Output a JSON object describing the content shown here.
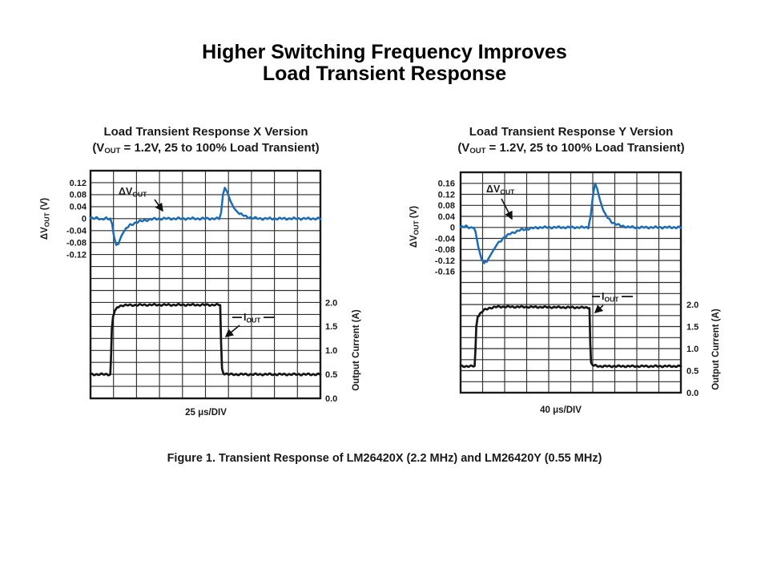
{
  "slide": {
    "title_line1": "Higher Switching Frequency Improves",
    "title_line2": "Load Transient Response",
    "caption": "Figure 1. Transient Response of LM26420X (2.2 MHz) and LM26420Y (0.55 MHz)",
    "background_color": "#ffffff",
    "text_color": "#1a1a1a"
  },
  "chart_data": [
    {
      "type": "line",
      "title": "Load Transient Response X Version",
      "subtitle_pre": "(V",
      "subtitle_sub": "OUT",
      "subtitle_post": " = 1.2V, 25 to 100% Load Transient)",
      "x_axis": {
        "label": "25 μs/DIV",
        "us_per_div": 25,
        "divisions": 10
      },
      "left_axis": {
        "label_main": "ΔV",
        "label_sub": "OUT",
        "label_unit": "(V)",
        "volts_per_div": 0.04,
        "ticks": [
          "0.12",
          "0.08",
          "0.04",
          "0",
          "-0.04",
          "-0.08",
          "-0.12"
        ]
      },
      "right_axis": {
        "label": "Output Current (A)",
        "ticks": [
          "2.0",
          "1.5",
          "1.0",
          "0.5",
          "0.0"
        ]
      },
      "annotations": [
        {
          "main": "ΔV",
          "sub": "OUT"
        },
        {
          "main": "I",
          "sub": "OUT"
        }
      ],
      "series": [
        {
          "name": "vout",
          "label": "Output Voltage Deviation",
          "units": "V",
          "color": "#1c6db6",
          "points": [
            [
              0,
              0
            ],
            [
              7,
              0.004
            ],
            [
              12,
              -0.005
            ],
            [
              17,
              0.002
            ],
            [
              21.5,
              0
            ],
            [
              23.5,
              -0.018
            ],
            [
              25.5,
              -0.06
            ],
            [
              28,
              -0.088
            ],
            [
              30.5,
              -0.082
            ],
            [
              34,
              -0.055
            ],
            [
              38,
              -0.035
            ],
            [
              43,
              -0.022
            ],
            [
              50,
              -0.012
            ],
            [
              60,
              -0.005
            ],
            [
              70,
              -0.001
            ],
            [
              80,
              0
            ],
            [
              140,
              0
            ],
            [
              142,
              0.02
            ],
            [
              144,
              0.08
            ],
            [
              146,
              0.103
            ],
            [
              148.5,
              0.09
            ],
            [
              152,
              0.06
            ],
            [
              156,
              0.035
            ],
            [
              161,
              0.018
            ],
            [
              168,
              0.008
            ],
            [
              176,
              0.002
            ],
            [
              185,
              0
            ],
            [
              250,
              0
            ]
          ]
        },
        {
          "name": "iout",
          "label": "Output Current",
          "units": "A",
          "color": "#161616",
          "points": [
            [
              0,
              0.5
            ],
            [
              21.5,
              0.5
            ],
            [
              22.3,
              0.85
            ],
            [
              23.2,
              1.45
            ],
            [
              24.5,
              1.7
            ],
            [
              26.5,
              1.83
            ],
            [
              29,
              1.9
            ],
            [
              34,
              1.94
            ],
            [
              60,
              1.95
            ],
            [
              141,
              1.95
            ],
            [
              142,
              1.15
            ],
            [
              143,
              0.62
            ],
            [
              144.5,
              0.52
            ],
            [
              150,
              0.5
            ],
            [
              250,
              0.5
            ]
          ]
        }
      ]
    },
    {
      "type": "line",
      "title": "Load Transient Response Y Version",
      "subtitle_pre": "(V",
      "subtitle_sub": "OUT",
      "subtitle_post": " = 1.2V, 25 to 100% Load Transient)",
      "x_axis": {
        "label": "40 μs/DIV",
        "us_per_div": 40,
        "divisions": 10
      },
      "left_axis": {
        "label_main": "ΔV",
        "label_sub": "OUT",
        "label_unit": "(V)",
        "volts_per_div": 0.04,
        "ticks": [
          "0.16",
          "0.12",
          "0.08",
          "0.04",
          "0",
          "-0.04",
          "-0.08",
          "-0.12",
          "-0.16"
        ]
      },
      "right_axis": {
        "label": "Output Current (A)",
        "ticks": [
          "2.0",
          "1.5",
          "1.0",
          "0.5",
          "0.0"
        ]
      },
      "annotations": [
        {
          "main": "ΔV",
          "sub": "OUT"
        },
        {
          "main": "I",
          "sub": "OUT"
        }
      ],
      "series": [
        {
          "name": "vout",
          "label": "Output Voltage Deviation",
          "units": "V",
          "color": "#1c6db6",
          "points": [
            [
              0,
              0
            ],
            [
              10,
              0.006
            ],
            [
              18,
              -0.004
            ],
            [
              24,
              0
            ],
            [
              27,
              -0.015
            ],
            [
              32,
              -0.07
            ],
            [
              38,
              -0.115
            ],
            [
              43,
              -0.13
            ],
            [
              48,
              -0.122
            ],
            [
              56,
              -0.095
            ],
            [
              66,
              -0.062
            ],
            [
              78,
              -0.038
            ],
            [
              92,
              -0.021
            ],
            [
              108,
              -0.01
            ],
            [
              126,
              -0.004
            ],
            [
              144,
              0
            ],
            [
              232,
              0
            ],
            [
              236,
              0.04
            ],
            [
              240,
              0.11
            ],
            [
              244,
              0.16
            ],
            [
              248,
              0.14
            ],
            [
              253,
              0.1
            ],
            [
              259,
              0.062
            ],
            [
              267,
              0.034
            ],
            [
              277,
              0.016
            ],
            [
              290,
              0.006
            ],
            [
              305,
              0.001
            ],
            [
              320,
              0
            ],
            [
              400,
              0
            ]
          ]
        },
        {
          "name": "iout",
          "label": "Output Current",
          "units": "A",
          "color": "#161616",
          "points": [
            [
              0,
              0.6
            ],
            [
              25.5,
              0.6
            ],
            [
              27,
              1.0
            ],
            [
              28.5,
              1.5
            ],
            [
              31,
              1.72
            ],
            [
              36,
              1.8
            ],
            [
              42,
              1.87
            ],
            [
              52,
              1.92
            ],
            [
              68,
              1.95
            ],
            [
              160,
              1.94
            ],
            [
              234,
              1.93
            ],
            [
              235.5,
              1.1
            ],
            [
              237,
              0.68
            ],
            [
              240,
              0.62
            ],
            [
              252,
              0.6
            ],
            [
              400,
              0.6
            ]
          ]
        }
      ]
    }
  ]
}
